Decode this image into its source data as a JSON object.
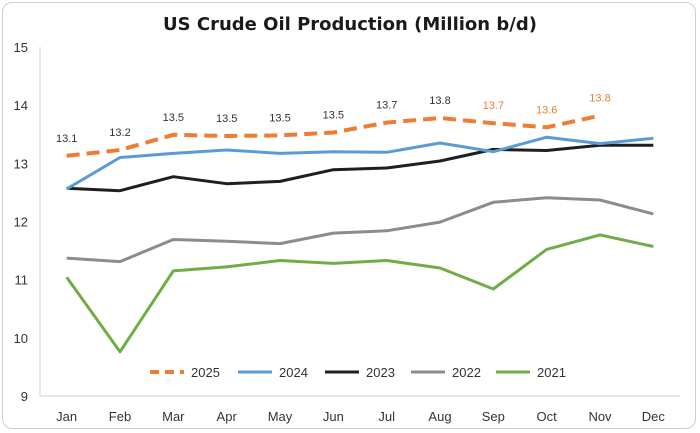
{
  "chart_data": {
    "type": "line",
    "title": "US Crude Oil Production (Million b/d)",
    "xlabel": "",
    "ylabel": "",
    "categories": [
      "Jan",
      "Feb",
      "Mar",
      "Apr",
      "May",
      "Jun",
      "Jul",
      "Aug",
      "Sep",
      "Oct",
      "Nov",
      "Dec"
    ],
    "ylim": [
      9,
      15
    ],
    "yticks": [
      9,
      10,
      11,
      12,
      13,
      14,
      15
    ],
    "grid": false,
    "legend_position": "bottom",
    "series": [
      {
        "name": "2025",
        "color": "#ED7D31",
        "dashed": true,
        "values": [
          13.13,
          13.23,
          13.49,
          13.47,
          13.48,
          13.53,
          13.7,
          13.78,
          13.69,
          13.62,
          13.82,
          null
        ],
        "labels": [
          "13.1",
          "13.2",
          "13.5",
          "13.5",
          "13.5",
          "13.5",
          "13.7",
          "13.8",
          "13.7",
          "13.6",
          "13.8",
          null
        ]
      },
      {
        "name": "2024",
        "color": "#5B9BD5",
        "dashed": false,
        "values": [
          12.56,
          13.1,
          13.17,
          13.23,
          13.17,
          13.2,
          13.19,
          13.35,
          13.2,
          13.45,
          13.34,
          13.43
        ]
      },
      {
        "name": "2023",
        "color": "#1F1F1F",
        "dashed": false,
        "values": [
          12.57,
          12.53,
          12.77,
          12.65,
          12.69,
          12.89,
          12.92,
          13.04,
          13.24,
          13.22,
          13.31,
          13.31
        ]
      },
      {
        "name": "2022",
        "color": "#8C8C8C",
        "dashed": false,
        "values": [
          11.37,
          11.31,
          11.69,
          11.66,
          11.62,
          11.8,
          11.84,
          11.99,
          12.33,
          12.41,
          12.37,
          12.13
        ]
      },
      {
        "name": "2021",
        "color": "#70AD47",
        "dashed": false,
        "values": [
          11.04,
          9.76,
          11.15,
          11.22,
          11.33,
          11.28,
          11.33,
          11.2,
          10.84,
          11.52,
          11.77,
          11.57
        ]
      }
    ]
  }
}
